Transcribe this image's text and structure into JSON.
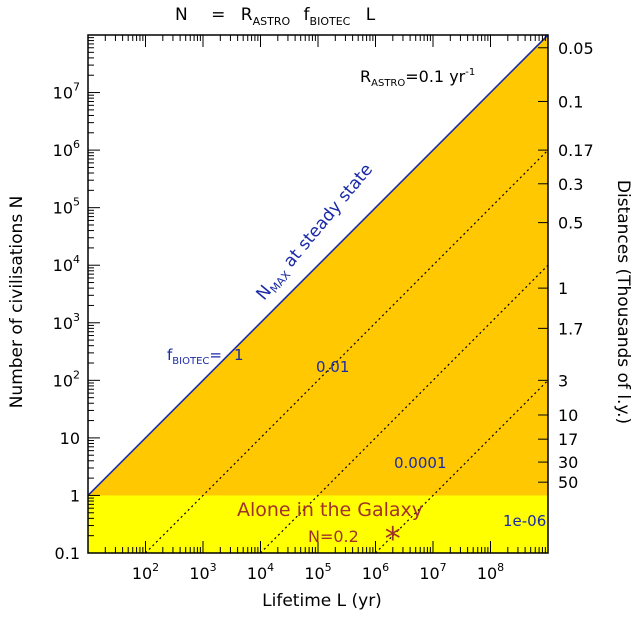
{
  "chart_data": {
    "type": "line",
    "title": {
      "main": "N",
      "eq": "=",
      "r": "R",
      "r_sub": "ASTRO",
      "f": "f",
      "f_sub": "BIOTEC",
      "l": "L"
    },
    "xlabel": "Lifetime L (yr)",
    "ylabel": "Number of civilisations N",
    "right_label": "Distances (Thousands of l.y.)",
    "x_scale": "log",
    "y_scale": "log",
    "xlim": [
      10,
      1000000000
    ],
    "ylim": [
      0.1,
      100000000
    ],
    "x_ticks": [
      {
        "value": 100,
        "base": "10",
        "exp": "2"
      },
      {
        "value": 1000,
        "base": "10",
        "exp": "3"
      },
      {
        "value": 10000,
        "base": "10",
        "exp": "4"
      },
      {
        "value": 100000,
        "base": "10",
        "exp": "5"
      },
      {
        "value": 1000000,
        "base": "10",
        "exp": "6"
      },
      {
        "value": 10000000,
        "base": "10",
        "exp": "7"
      },
      {
        "value": 100000000,
        "base": "10",
        "exp": "8"
      }
    ],
    "y_ticks": [
      {
        "value": 0.1,
        "label": "0.1",
        "base": "",
        "exp": ""
      },
      {
        "value": 1,
        "label": "1",
        "base": "",
        "exp": ""
      },
      {
        "value": 10,
        "label": "10",
        "base": "",
        "exp": ""
      },
      {
        "value": 100,
        "label": "",
        "base": "10",
        "exp": "2"
      },
      {
        "value": 1000,
        "label": "",
        "base": "10",
        "exp": "3"
      },
      {
        "value": 10000,
        "label": "",
        "base": "10",
        "exp": "4"
      },
      {
        "value": 100000,
        "label": "",
        "base": "10",
        "exp": "5"
      },
      {
        "value": 1000000,
        "label": "",
        "base": "10",
        "exp": "6"
      },
      {
        "value": 10000000,
        "label": "",
        "base": "10",
        "exp": "7"
      }
    ],
    "right_ticks": [
      {
        "n": 60000000,
        "label": "0.05"
      },
      {
        "n": 7000000,
        "label": "0.1"
      },
      {
        "n": 1000000,
        "label": "0.17"
      },
      {
        "n": 260000,
        "label": "0.3"
      },
      {
        "n": 55000,
        "label": "0.5"
      },
      {
        "n": 4000,
        "label": "1"
      },
      {
        "n": 800,
        "label": "1.7"
      },
      {
        "n": 100,
        "label": "3"
      },
      {
        "n": 25,
        "label": "10"
      },
      {
        "n": 9.5,
        "label": "17"
      },
      {
        "n": 3.8,
        "label": "30"
      },
      {
        "n": 1.7,
        "label": "50"
      }
    ],
    "regions": [
      {
        "name": "civilisations-region",
        "color": "#ffc800"
      },
      {
        "name": "alone-region",
        "color": "#ffff00",
        "y_max": 1
      }
    ],
    "series": [
      {
        "name": "N_MAX at steady state",
        "f_biotec": 1,
        "label": "1",
        "style": "solid",
        "color": "#1a2aa8",
        "r_astro": 0.1
      },
      {
        "f_biotec": 0.01,
        "label": "0.01",
        "style": "dotted",
        "color": "#000000",
        "r_astro": 0.1
      },
      {
        "f_biotec": 0.0001,
        "label": "0.0001",
        "style": "dotted",
        "color": "#000000",
        "r_astro": 0.1
      },
      {
        "f_biotec": 1e-06,
        "label": "1e-06",
        "style": "dotted",
        "color": "#000000",
        "r_astro": 0.1
      }
    ],
    "annotations": {
      "nmax_main": "N",
      "nmax_sub": "MAX",
      "nmax_rest": " at steady state",
      "fbiotec_main": "f",
      "fbiotec_sub": "BIOTEC",
      "fbiotec_eq": "=",
      "fbiotec_val": "1",
      "rastro_main": "R",
      "rastro_sub": "ASTRO",
      "rastro_val": "=0.1 yr",
      "rastro_exp": "-1",
      "alone": "Alone in the Galaxy",
      "n_point_label": "N=0.2"
    },
    "marker": {
      "x": 2000000,
      "y": 0.2,
      "symbol": "*",
      "color": "#a0322a"
    }
  }
}
